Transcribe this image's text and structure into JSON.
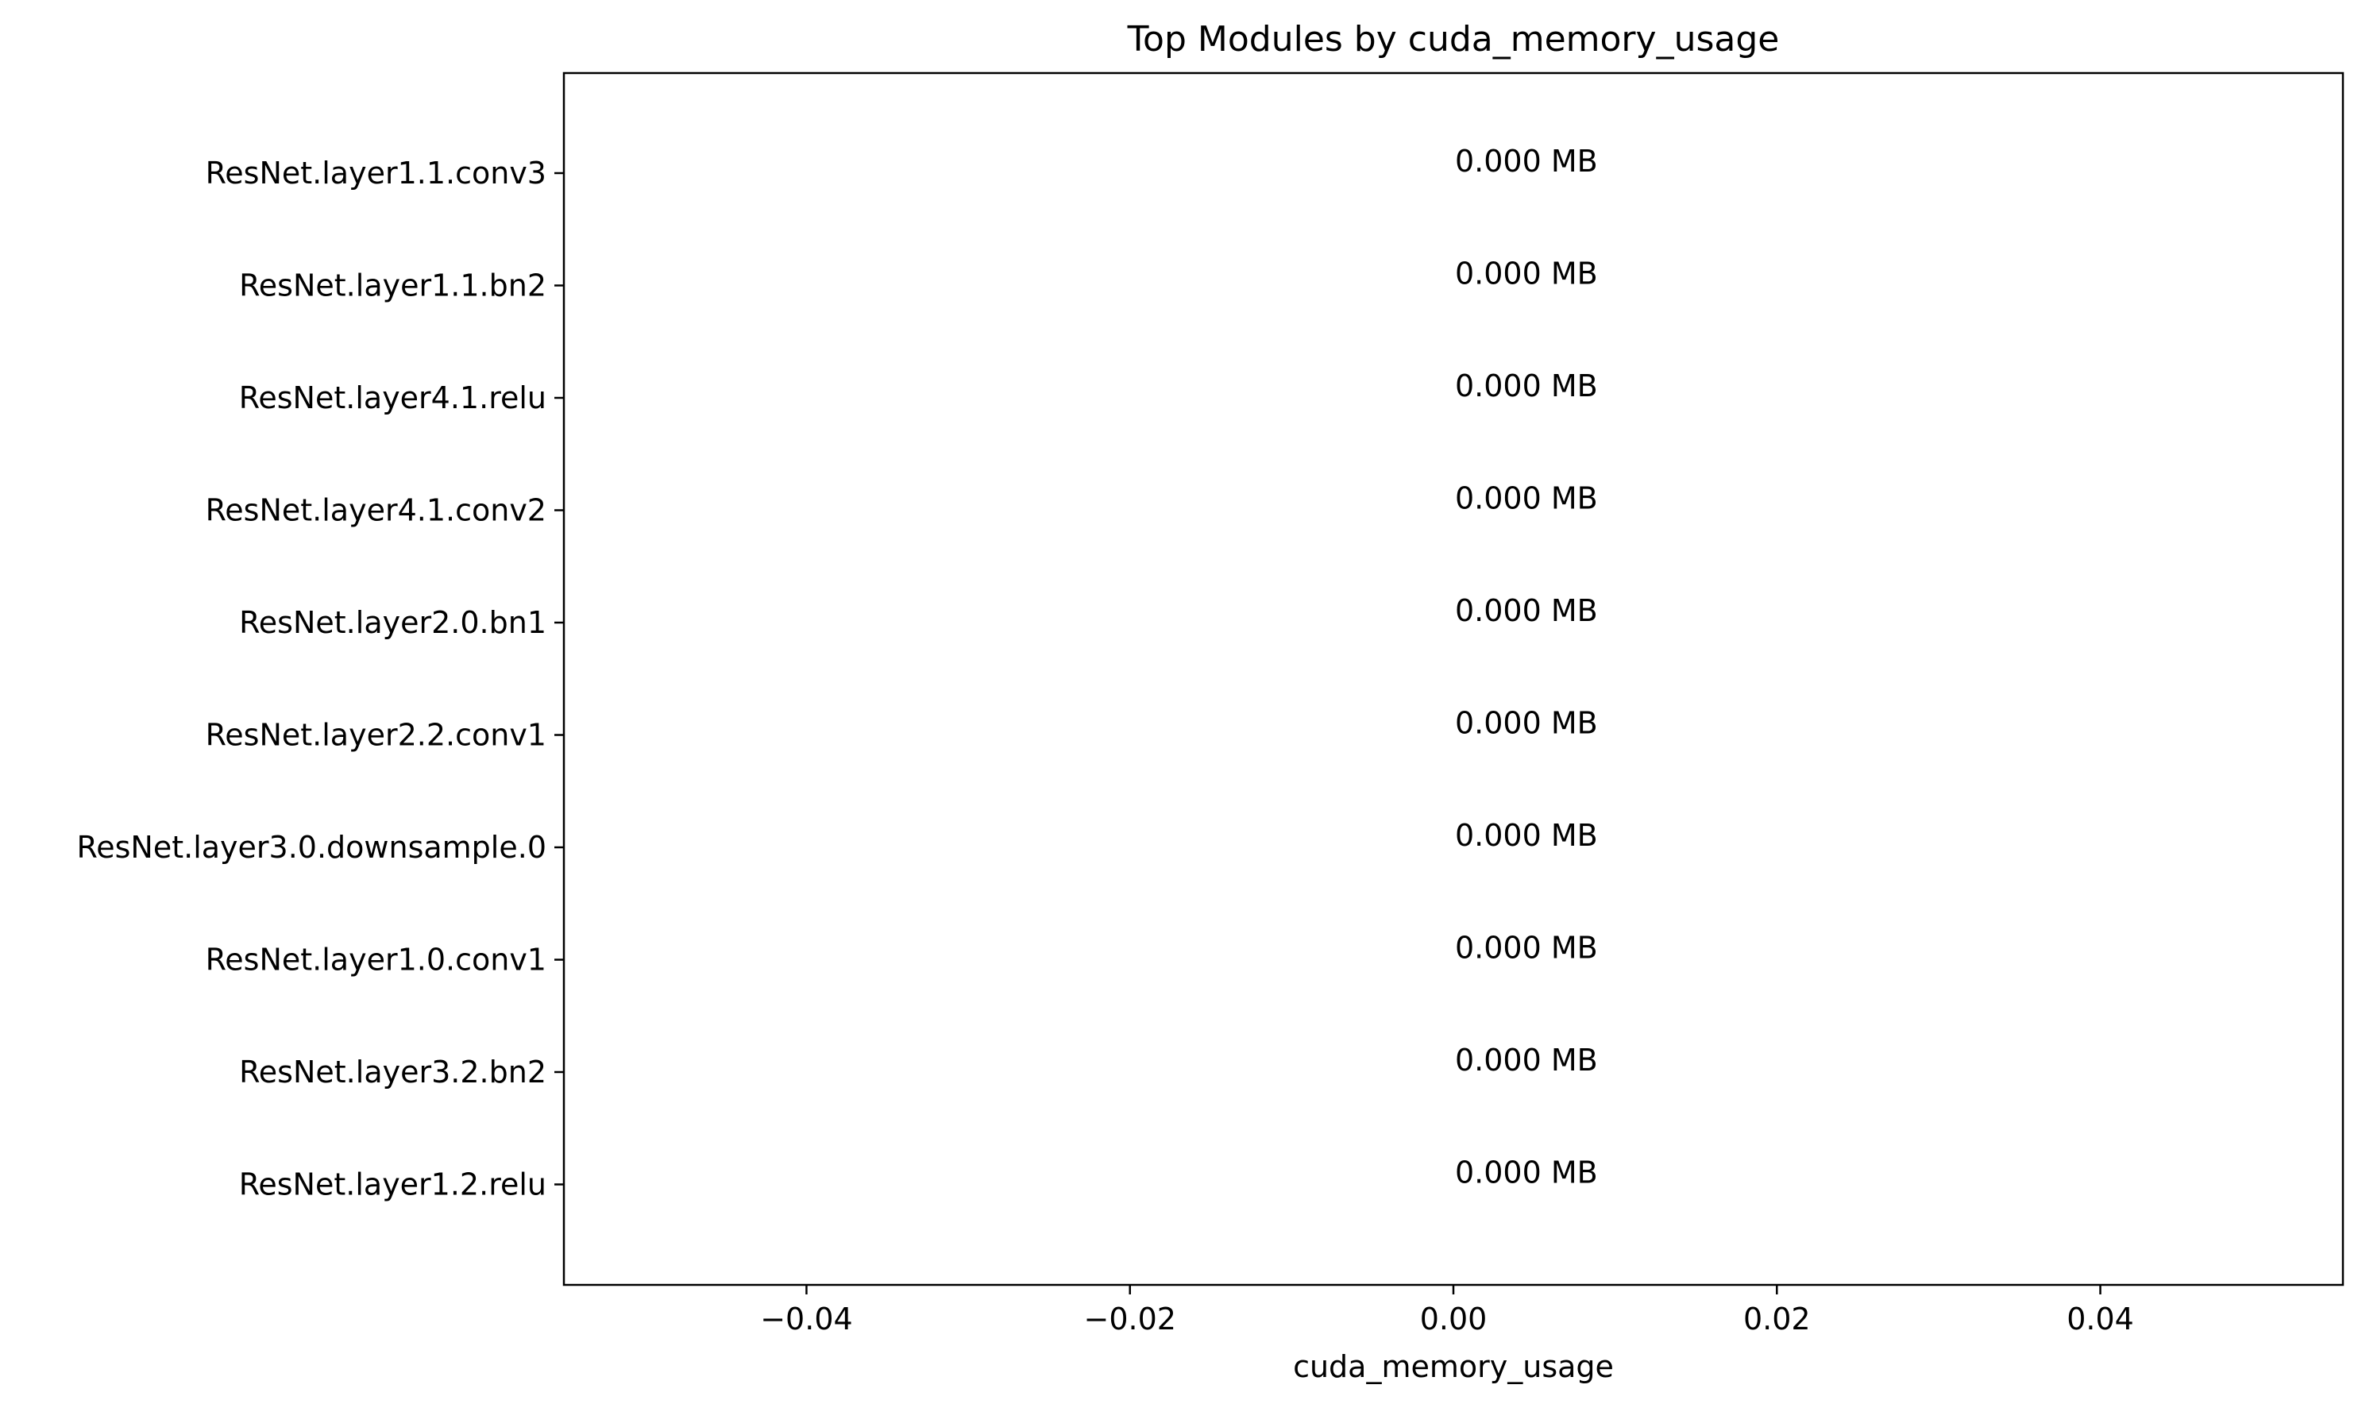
{
  "chart_data": {
    "type": "bar",
    "orientation": "horizontal",
    "title": "Top Modules by cuda_memory_usage",
    "xlabel": "cuda_memory_usage",
    "ylabel": "",
    "xlim": [
      -0.055,
      0.055
    ],
    "xticks": [
      -0.04,
      -0.02,
      0.0,
      0.02,
      0.04
    ],
    "xtick_labels": [
      "−0.04",
      "−0.02",
      "0.00",
      "0.02",
      "0.04"
    ],
    "categories": [
      "ResNet.layer1.1.conv3",
      "ResNet.layer1.1.bn2",
      "ResNet.layer4.1.relu",
      "ResNet.layer4.1.conv2",
      "ResNet.layer2.0.bn1",
      "ResNet.layer2.2.conv1",
      "ResNet.layer3.0.downsample.0",
      "ResNet.layer1.0.conv1",
      "ResNet.layer3.2.bn2",
      "ResNet.layer1.2.relu"
    ],
    "values": [
      0,
      0,
      0,
      0,
      0,
      0,
      0,
      0,
      0,
      0
    ],
    "data_labels": [
      "0.000 MB",
      "0.000 MB",
      "0.000 MB",
      "0.000 MB",
      "0.000 MB",
      "0.000 MB",
      "0.000 MB",
      "0.000 MB",
      "0.000 MB",
      "0.000 MB"
    ],
    "grid": false,
    "legend": "none",
    "bar_color": "#1f77b4"
  }
}
